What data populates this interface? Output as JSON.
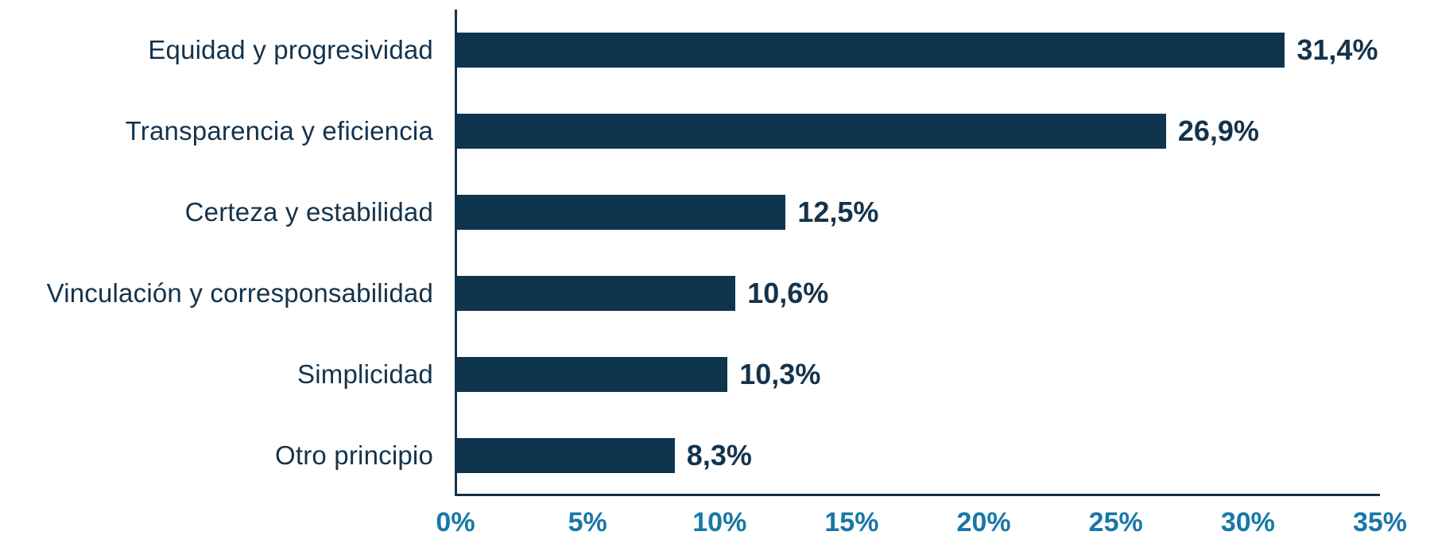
{
  "chart_data": {
    "type": "bar",
    "orientation": "horizontal",
    "title": "",
    "xlabel": "",
    "ylabel": "",
    "categories": [
      "Equidad y progresividad",
      "Transparencia y eficiencia",
      "Certeza y estabilidad",
      "Vinculación y corresponsabilidad",
      "Simplicidad",
      "Otro principio"
    ],
    "values": [
      31.4,
      26.9,
      12.5,
      10.6,
      10.3,
      8.3
    ],
    "value_labels": [
      "31,4%",
      "26,9%",
      "12,5%",
      "10,6%",
      "10,3%",
      "8,3%"
    ],
    "xlim": [
      0,
      35
    ],
    "x_ticks": [
      0,
      5,
      10,
      15,
      20,
      25,
      30,
      35
    ],
    "x_tick_labels": [
      "0%",
      "5%",
      "10%",
      "15%",
      "20%",
      "25%",
      "30%",
      "35%"
    ],
    "grid": false,
    "legend": false,
    "colors": {
      "bar": "#0F344E",
      "axis_line": "#14334C",
      "category_label": "#14334C",
      "value_label": "#14334C",
      "tick_label": "#1878A8",
      "background": "#FFFFFF"
    }
  }
}
